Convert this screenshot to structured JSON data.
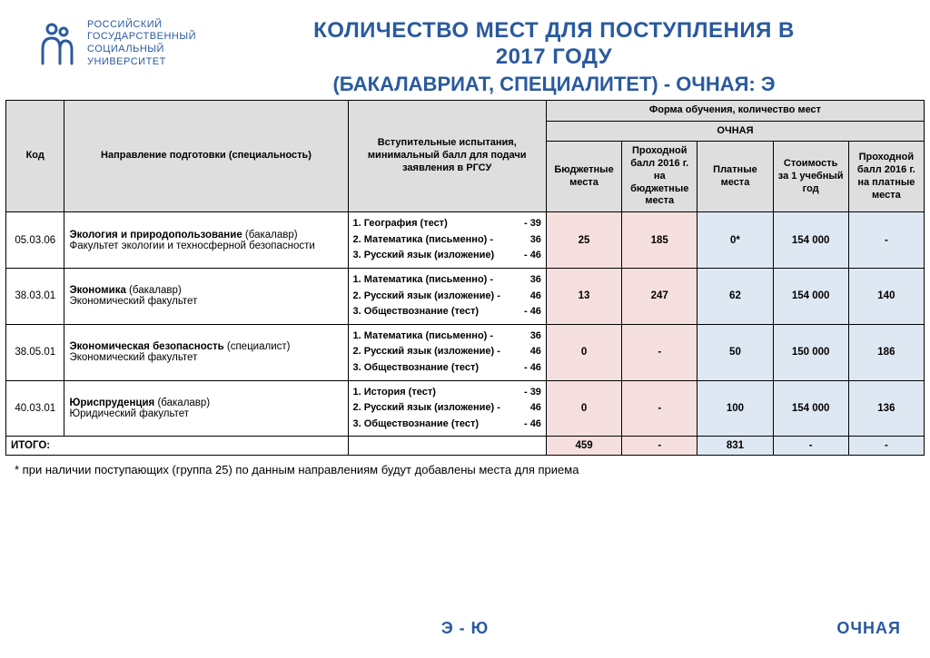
{
  "logo": {
    "line1": "РОССИЙСКИЙ",
    "line2": "ГОСУДАРСТВЕННЫЙ",
    "line3": "СОЦИАЛЬНЫЙ",
    "line4": "УНИВЕРСИТЕТ",
    "icon_color": "#2a5a9e"
  },
  "title_line1": "КОЛИЧЕСТВО МЕСТ ДЛЯ ПОСТУПЛЕНИЯ В",
  "title_line2": "2017 ГОДУ",
  "subtitle": "(БАКАЛАВРИАТ, СПЕЦИАЛИТЕТ) - ОЧНАЯ: Э",
  "headers": {
    "code": "Код",
    "direction": "Направление подготовки (специальность)",
    "exams": "Вступительные испытания, минимальный балл для подачи заявления в РГСУ",
    "form_group": "Форма обучения, количество мест",
    "form_sub": "ОЧНАЯ",
    "budget": "Бюджетные места",
    "pass_budget": "Проходной балл 2016 г. на бюджетные места",
    "paid": "Платные места",
    "cost": "Стоимость за 1 учебный год",
    "pass_paid": "Проходной балл 2016 г. на платные места"
  },
  "rows": [
    {
      "code": "05.03.06",
      "title": "Экология и природопользование",
      "degree": "(бакалавр)",
      "faculty": "Факультет экологии и техносферной безопасности",
      "exams": [
        {
          "n": "1.",
          "name": "География (тест)",
          "score": "- 39"
        },
        {
          "n": "2.",
          "name": "Математика (письменно) -",
          "score": "36"
        },
        {
          "n": "3.",
          "name": "Русский язык (изложение)",
          "score": "- 46"
        }
      ],
      "budget": "25",
      "pass_budget": "185",
      "paid": "0*",
      "cost": "154 000",
      "pass_paid": "-"
    },
    {
      "code": "38.03.01",
      "title": "Экономика",
      "degree": "(бакалавр)",
      "faculty": "Экономический факультет",
      "exams": [
        {
          "n": "1.",
          "name": "Математика (письменно) -",
          "score": "36"
        },
        {
          "n": "2.",
          "name": "Русский язык (изложение) -",
          "score": "46"
        },
        {
          "n": "3.",
          "name": "Обществознание  (тест)",
          "score": "- 46"
        }
      ],
      "budget": "13",
      "pass_budget": "247",
      "paid": "62",
      "cost": "154 000",
      "pass_paid": "140"
    },
    {
      "code": "38.05.01",
      "title": "Экономическая безопасность",
      "degree": "(специалист)",
      "faculty": "Экономический факультет",
      "exams": [
        {
          "n": "1.",
          "name": "Математика (письменно) -",
          "score": "36"
        },
        {
          "n": "2.",
          "name": "Русский язык (изложение) -",
          "score": "46"
        },
        {
          "n": "3.",
          "name": "Обществознание  (тест)",
          "score": "- 46"
        }
      ],
      "budget": "0",
      "pass_budget": "-",
      "paid": "50",
      "cost": "150 000",
      "pass_paid": "186"
    },
    {
      "code": "40.03.01",
      "title": "Юриспруденция",
      "degree": "(бакалавр)",
      "faculty": "Юридический факультет",
      "exams": [
        {
          "n": "1.",
          "name": "История (тест)",
          "score": "- 39"
        },
        {
          "n": "2.",
          "name": "Русский язык (изложение) -",
          "score": "46"
        },
        {
          "n": "3.",
          "name": "Обществознание  (тест)",
          "score": "- 46"
        }
      ],
      "budget": "0",
      "pass_budget": "-",
      "paid": "100",
      "cost": "154 000",
      "pass_paid": "136"
    }
  ],
  "totals": {
    "label": "ИТОГО:",
    "budget": "459",
    "pass_budget": "-",
    "paid": "831",
    "cost": "-",
    "pass_paid": "-"
  },
  "footnote": "* при наличии поступающих (группа 25) по данным направлениям будут добавлены места для приема",
  "footer_left": "Э - Ю",
  "footer_right": "ОЧНАЯ",
  "colors": {
    "brand": "#2a5a9e",
    "th_bg": "#dedede",
    "pink": "#f6e0df",
    "blue": "#dee8f2"
  }
}
